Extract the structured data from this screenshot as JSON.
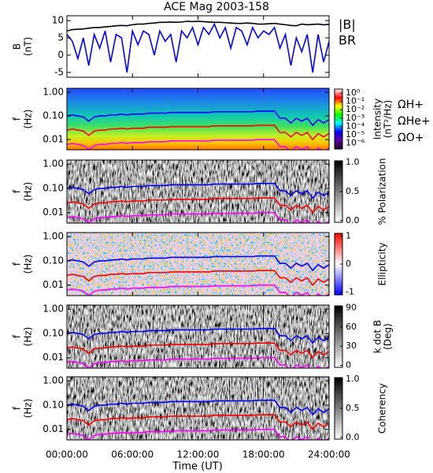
{
  "chart_data": {
    "type": "multi-panel",
    "title": "ACE Mag 2003-158",
    "xlabel": "Time (UT)",
    "xlim": [
      0,
      24
    ],
    "xticks": [
      {
        "value": 0,
        "label": "00:00:00"
      },
      {
        "value": 6,
        "label": "06:00:00"
      },
      {
        "value": 12,
        "label": "12:00:00"
      },
      {
        "value": 18,
        "label": "18:00:00"
      },
      {
        "value": 24,
        "label": "24:00:00"
      }
    ],
    "x": [
      0,
      0.5,
      1,
      1.5,
      2,
      2.5,
      3,
      3.5,
      4,
      4.5,
      5,
      5.5,
      6,
      6.5,
      7,
      7.5,
      8,
      8.5,
      9,
      9.5,
      10,
      10.5,
      11,
      11.5,
      12,
      12.5,
      13,
      13.5,
      14,
      14.5,
      15,
      15.5,
      16,
      16.5,
      17,
      17.5,
      18,
      18.5,
      19,
      19.5,
      20,
      20.5,
      21,
      21.5,
      22,
      22.5,
      23,
      23.5,
      24
    ],
    "field": {
      "type": "line",
      "ylabel": [
        "B",
        "(nT)"
      ],
      "ylim": [
        -6.4,
        11.4
      ],
      "yticks": [
        -5,
        0,
        5,
        10
      ],
      "series": [
        {
          "name": "|B|",
          "color": "#000000",
          "values": [
            7.0,
            7.4,
            7.5,
            7.6,
            7.8,
            8.0,
            8.0,
            8.2,
            8.3,
            8.5,
            8.6,
            8.5,
            8.8,
            9.0,
            9.0,
            9.2,
            9.3,
            9.5,
            9.5,
            9.6,
            9.5,
            9.6,
            9.8,
            9.7,
            9.8,
            9.7,
            9.6,
            9.5,
            9.5,
            9.4,
            9.3,
            9.2,
            9.2,
            9.3,
            9.2,
            9.0,
            9.0,
            9.1,
            9.2,
            9.0,
            8.8,
            8.6,
            8.5,
            9.0,
            8.8,
            8.9,
            9.0,
            8.8,
            8.9
          ]
        },
        {
          "name": "BR",
          "color": "#0000ff",
          "values": [
            6,
            4,
            -1,
            5,
            -3,
            6,
            2,
            7,
            -2,
            6,
            5,
            -5,
            7,
            3,
            7,
            6,
            0,
            7,
            4,
            6,
            -2,
            7,
            5,
            8,
            3,
            8,
            6,
            9,
            5,
            8,
            2,
            8,
            7,
            3,
            8,
            5,
            7,
            6,
            8,
            2,
            6,
            -3,
            5,
            1,
            6,
            -5,
            6,
            -2,
            4
          ]
        }
      ]
    },
    "frequency_lines": [
      {
        "name": "ΩH+",
        "color": "#0000ff",
        "values": [
          0.1,
          0.11,
          0.1,
          0.09,
          0.06,
          0.09,
          0.1,
          0.1,
          0.11,
          0.11,
          0.12,
          0.11,
          0.12,
          0.12,
          0.12,
          0.13,
          0.13,
          0.13,
          0.13,
          0.14,
          0.14,
          0.14,
          0.14,
          0.14,
          0.14,
          0.14,
          0.14,
          0.15,
          0.15,
          0.15,
          0.15,
          0.15,
          0.15,
          0.15,
          0.15,
          0.16,
          0.16,
          0.16,
          0.16,
          0.08,
          0.08,
          0.05,
          0.08,
          0.06,
          0.08,
          0.04,
          0.07,
          0.05,
          0.07
        ]
      },
      {
        "name": "ΩHe+",
        "color": "#ff0000",
        "values": [
          0.025,
          0.028,
          0.025,
          0.023,
          0.015,
          0.023,
          0.025,
          0.025,
          0.028,
          0.028,
          0.03,
          0.028,
          0.03,
          0.03,
          0.03,
          0.033,
          0.033,
          0.033,
          0.033,
          0.035,
          0.035,
          0.035,
          0.035,
          0.035,
          0.035,
          0.035,
          0.035,
          0.038,
          0.038,
          0.038,
          0.038,
          0.038,
          0.038,
          0.038,
          0.038,
          0.04,
          0.04,
          0.04,
          0.04,
          0.02,
          0.02,
          0.013,
          0.02,
          0.015,
          0.02,
          0.01,
          0.018,
          0.013,
          0.018
        ]
      },
      {
        "name": "ΩO+",
        "color": "#ff00ff",
        "values": [
          0.0063,
          0.0069,
          0.0063,
          0.0056,
          0.0038,
          0.0056,
          0.0063,
          0.0063,
          0.0069,
          0.0069,
          0.0075,
          0.0069,
          0.0075,
          0.0075,
          0.0075,
          0.0081,
          0.0081,
          0.0081,
          0.0081,
          0.0088,
          0.0088,
          0.0088,
          0.0088,
          0.0088,
          0.0088,
          0.0088,
          0.0088,
          0.0094,
          0.0094,
          0.0094,
          0.0094,
          0.0094,
          0.0094,
          0.0094,
          0.0094,
          0.01,
          0.01,
          0.01,
          0.01,
          0.005,
          0.005,
          0.0031,
          0.005,
          0.0038,
          0.005,
          0.0025,
          0.0044,
          0.0031,
          0.0044
        ]
      }
    ],
    "panels": [
      {
        "type": "heatmap",
        "ylabel": [
          "f",
          "(Hz)"
        ],
        "log": true,
        "ylim": [
          0.0037,
          1.47
        ],
        "yticks": [
          {
            "value": 0.01,
            "label": "0.01"
          },
          {
            "value": 0.1,
            "label": "0.10"
          },
          {
            "value": 1,
            "label": "1.00"
          }
        ],
        "colorbar": {
          "label": [
            "Intensity",
            "(nT²/Hz)"
          ],
          "log": true,
          "lim": [
            2e-07,
            3
          ],
          "colors": [
            "#200030",
            "#6000a0",
            "#0000ff",
            "#00ffff",
            "#00ff00",
            "#ffff00",
            "#ff0000",
            "#ffffff"
          ],
          "ticks": [
            {
              "value": 1,
              "label": "10⁰"
            },
            {
              "value": 0.1,
              "label": "10⁻¹"
            },
            {
              "value": 0.01,
              "label": "10⁻²"
            },
            {
              "value": 0.001,
              "label": "10⁻³"
            },
            {
              "value": 0.0001,
              "label": "10⁻⁴"
            },
            {
              "value": 1e-05,
              "label": "10⁻⁵"
            },
            {
              "value": 1e-06,
              "label": "10⁻⁶"
            }
          ]
        }
      },
      {
        "type": "heatmap",
        "ylabel": [
          "f",
          "(Hz)"
        ],
        "log": true,
        "ylim": [
          0.0037,
          1.47
        ],
        "yticks": [
          {
            "value": 0.01,
            "label": "0.01"
          },
          {
            "value": 0.1,
            "label": "0.10"
          },
          {
            "value": 1,
            "label": "1.00"
          }
        ],
        "colorbar": {
          "label": [
            "% Polarization"
          ],
          "log": false,
          "lim": [
            -0.03,
            1.03
          ],
          "colors": [
            "#ffffff",
            "#000000"
          ],
          "ticks": [
            {
              "value": 0,
              "label": "0.0"
            },
            {
              "value": 0.5,
              "label": "0.5"
            },
            {
              "value": 1,
              "label": "1.0"
            }
          ]
        }
      },
      {
        "type": "heatmap",
        "ylabel": [
          "f",
          "(Hz)"
        ],
        "log": true,
        "ylim": [
          0.0037,
          1.47
        ],
        "yticks": [
          {
            "value": 0.01,
            "label": "0.01"
          },
          {
            "value": 0.1,
            "label": "0.10"
          },
          {
            "value": 1,
            "label": "1.00"
          }
        ],
        "colorbar": {
          "label": [
            "Ellipticity"
          ],
          "log": false,
          "lim": [
            -1.1,
            1.1
          ],
          "colors": [
            "#0000ff",
            "#ffffff",
            "#ff0000"
          ],
          "ticks": [
            -1,
            0,
            1
          ]
        }
      },
      {
        "type": "heatmap",
        "ylabel": [
          "f",
          "(Hz)"
        ],
        "log": true,
        "ylim": [
          0.0037,
          1.47
        ],
        "yticks": [
          {
            "value": 0.01,
            "label": "0.01"
          },
          {
            "value": 0.1,
            "label": "0.10"
          },
          {
            "value": 1,
            "label": "1.00"
          }
        ],
        "colorbar": {
          "label": [
            "k dot B",
            "(Deg)"
          ],
          "log": false,
          "lim": [
            -3,
            93
          ],
          "colors": [
            "#ffffff",
            "#000000"
          ],
          "ticks": [
            0,
            30,
            60,
            90
          ]
        }
      },
      {
        "type": "heatmap",
        "ylabel": [
          "f",
          "(Hz)"
        ],
        "log": true,
        "ylim": [
          0.0037,
          1.47
        ],
        "yticks": [
          {
            "value": 0.01,
            "label": "0.01"
          },
          {
            "value": 0.1,
            "label": "0.10"
          },
          {
            "value": 1,
            "label": "1.00"
          }
        ],
        "colorbar": {
          "label": [
            "Coherency"
          ],
          "log": false,
          "lim": [
            -0.03,
            1.03
          ],
          "colors": [
            "#ffffff",
            "#000000"
          ],
          "ticks": [
            {
              "value": 0,
              "label": "0.0"
            },
            {
              "value": 0.5,
              "label": "0.5"
            },
            {
              "value": 1,
              "label": "1.0"
            }
          ]
        }
      }
    ]
  }
}
